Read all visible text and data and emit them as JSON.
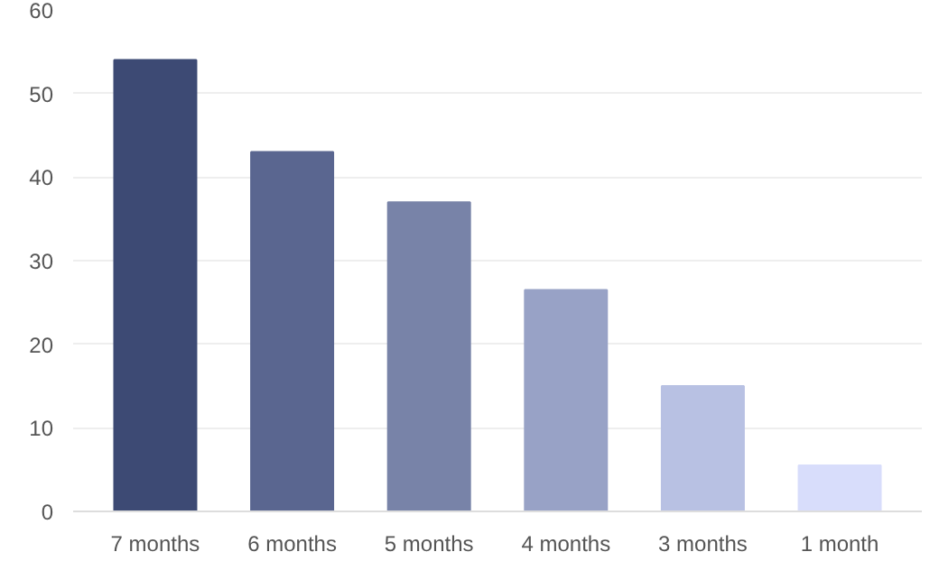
{
  "chart_data": {
    "type": "bar",
    "categories": [
      "7 months",
      "6 months",
      "5 months",
      "4 months",
      "3 months",
      "1 month"
    ],
    "values": [
      54,
      43,
      37,
      26.5,
      15,
      5.5
    ],
    "colors": [
      "#3d4a74",
      "#5a6690",
      "#7883a8",
      "#98a2c6",
      "#b8c1e3",
      "#d8ddfb"
    ],
    "ylim": [
      0,
      60
    ],
    "yticks": [
      0,
      10,
      20,
      30,
      40,
      50,
      60
    ],
    "grid": "y"
  }
}
